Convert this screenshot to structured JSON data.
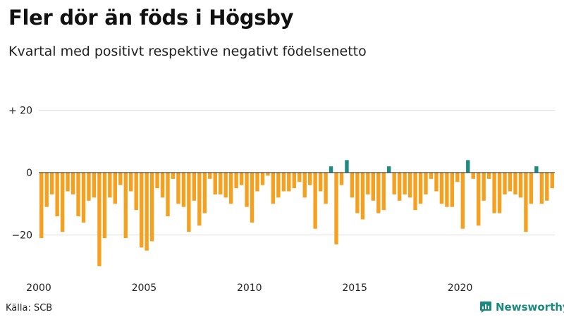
{
  "title": "Fler dör än föds i Högsby",
  "subtitle": "Kvartal med positivt respektive negativt födelsenetto",
  "source": "Källa: SCB",
  "brand": {
    "name": "Newsworthy",
    "icon": "newsworthy-logo-icon"
  },
  "colors": {
    "negative": "#f5a01e",
    "positive": "#1c8c82",
    "grid": "#dddddd",
    "zero_line": "#222222"
  },
  "chart_data": {
    "type": "bar",
    "title": "Fler dör än föds i Högsby",
    "subtitle": "Kvartal med positivt respektive negativt födelsenetto",
    "xlabel": "",
    "ylabel": "",
    "ylim": [
      -31,
      22
    ],
    "yticks": [
      20,
      0,
      -20
    ],
    "ytick_labels": [
      "+ 20",
      "0",
      "−20"
    ],
    "xticks": [
      2000,
      2005,
      2010,
      2015,
      2020
    ],
    "xtick_labels": [
      "2000",
      "2005",
      "2010",
      "2015",
      "2020"
    ],
    "start_year": 2000,
    "periods_per_year": 4,
    "values": [
      -21,
      -11,
      -7,
      -14,
      -19,
      -6,
      -7,
      -14,
      -16,
      -9,
      -8,
      -30,
      -21,
      -8,
      -10,
      -4,
      -21,
      -6,
      -12,
      -24,
      -25,
      -22,
      -5,
      -8,
      -14,
      -2,
      -10,
      -11,
      -19,
      -9,
      -17,
      -13,
      -2,
      -7,
      -7,
      -8,
      -10,
      -5,
      -4,
      -11,
      -16,
      -6,
      -4,
      -1,
      -10,
      -8,
      -6,
      -6,
      -5,
      -3,
      -8,
      -4,
      -18,
      -6,
      -10,
      2,
      -23,
      -4,
      4,
      -8,
      -13,
      -15,
      -7,
      -9,
      -13,
      -12,
      2,
      -7,
      -9,
      -7,
      -8,
      -12,
      -10,
      -7,
      -2,
      -6,
      -10,
      -11,
      -11,
      -3,
      -18,
      4,
      -2,
      -17,
      -9,
      -2,
      -13,
      -13,
      -7,
      -6,
      -7,
      -8,
      -19,
      -10,
      2,
      -10,
      -9,
      -5
    ]
  }
}
